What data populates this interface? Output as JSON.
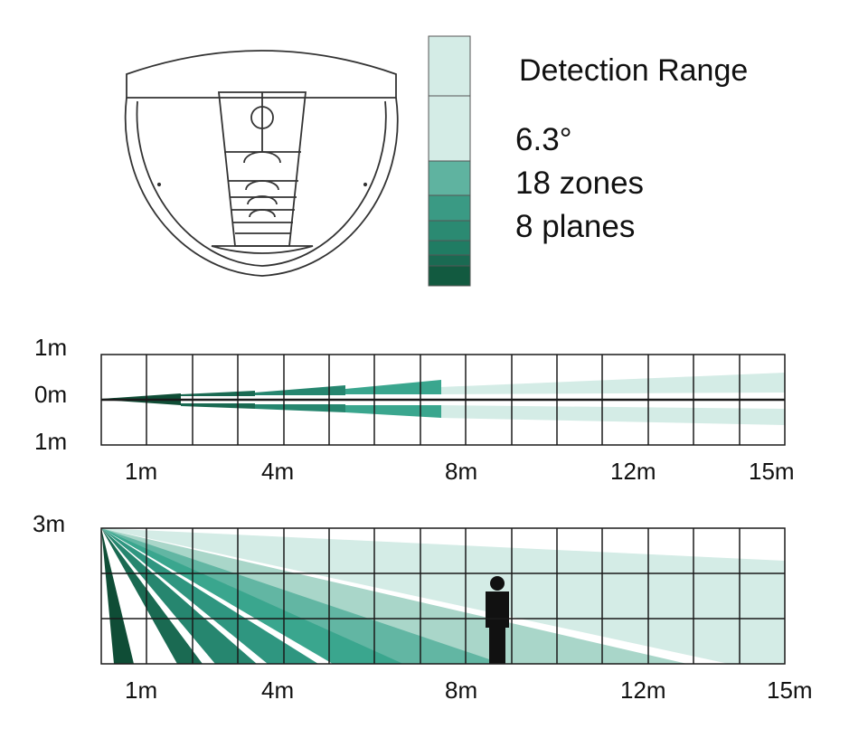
{
  "legend": {
    "title": "Detection Range",
    "items": [
      "6.3°",
      "18 zones",
      "8 planes"
    ]
  },
  "colors": {
    "zone_light": "#d4ece6",
    "zone_mid_light": "#a9d6c9",
    "zone_mid": "#62b6a3",
    "zone_teal": "#3aa68e",
    "zone_dark_teal": "#26866f",
    "zone_darker": "#1a6a52",
    "zone_darkest": "#0f4d36",
    "grid": "#1a1a1a",
    "person": "#111111"
  },
  "icons": {
    "sensor": "dome-sensor-icon",
    "person": "person-icon"
  },
  "top_view": {
    "y_labels": [
      "1m",
      "0m",
      "1m"
    ],
    "x_labels": [
      "1m",
      "4m",
      "8m",
      "12m",
      "15m"
    ]
  },
  "side_view": {
    "y_label": "3m",
    "x_labels": [
      "1m",
      "4m",
      "8m",
      "12m",
      "15m"
    ]
  }
}
